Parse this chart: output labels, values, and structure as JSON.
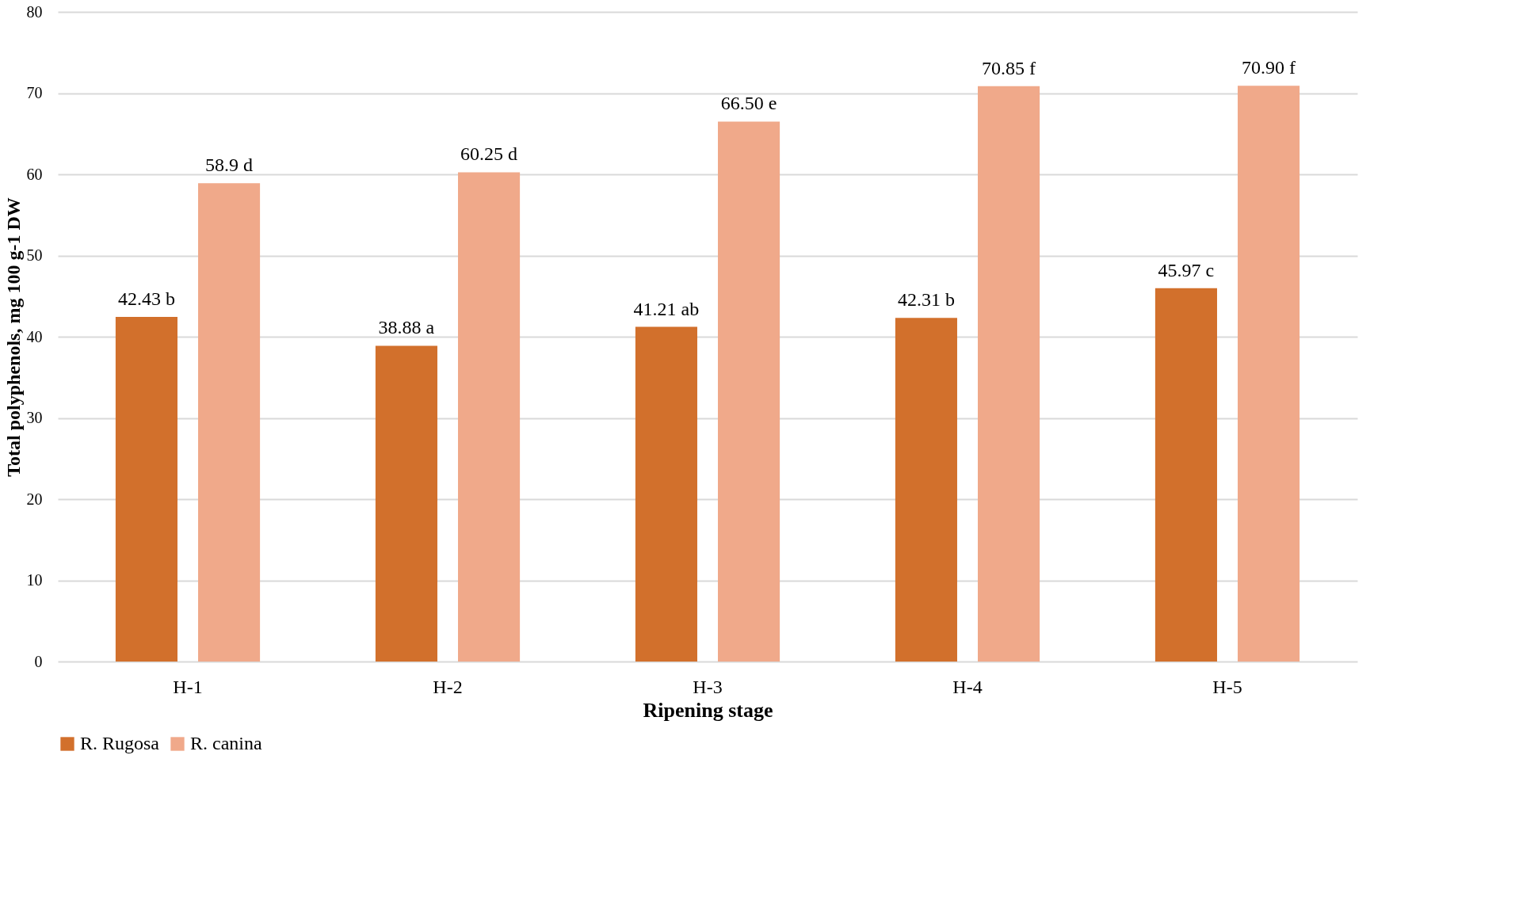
{
  "chart_data": {
    "type": "bar",
    "xlabel": "Ripening stage",
    "ylabel": "Total polyphenols,  mg 100 g-1 DW",
    "categories": [
      "H-1",
      "H-2",
      "H-3",
      "H-4",
      "H-5"
    ],
    "series": [
      {
        "name": "R. Rugosa",
        "color": "#d2702c",
        "values": [
          42.43,
          38.88,
          41.21,
          42.31,
          45.97
        ],
        "value_labels": [
          "42.43 b",
          "38.88 a",
          "41.21 ab",
          "42.31 b",
          "45.97 c"
        ]
      },
      {
        "name": "R. canina",
        "color": "#f0a98a",
        "values": [
          58.9,
          60.25,
          66.5,
          70.85,
          70.9
        ],
        "value_labels": [
          "58.9 d",
          "60.25 d",
          "66.50 e",
          "70.85 f",
          "70.90 f"
        ]
      }
    ],
    "ylim": [
      0,
      80
    ],
    "yticks": [
      0,
      10,
      20,
      30,
      40,
      50,
      60,
      70,
      80
    ],
    "grid": "y",
    "legend": "bottom"
  }
}
